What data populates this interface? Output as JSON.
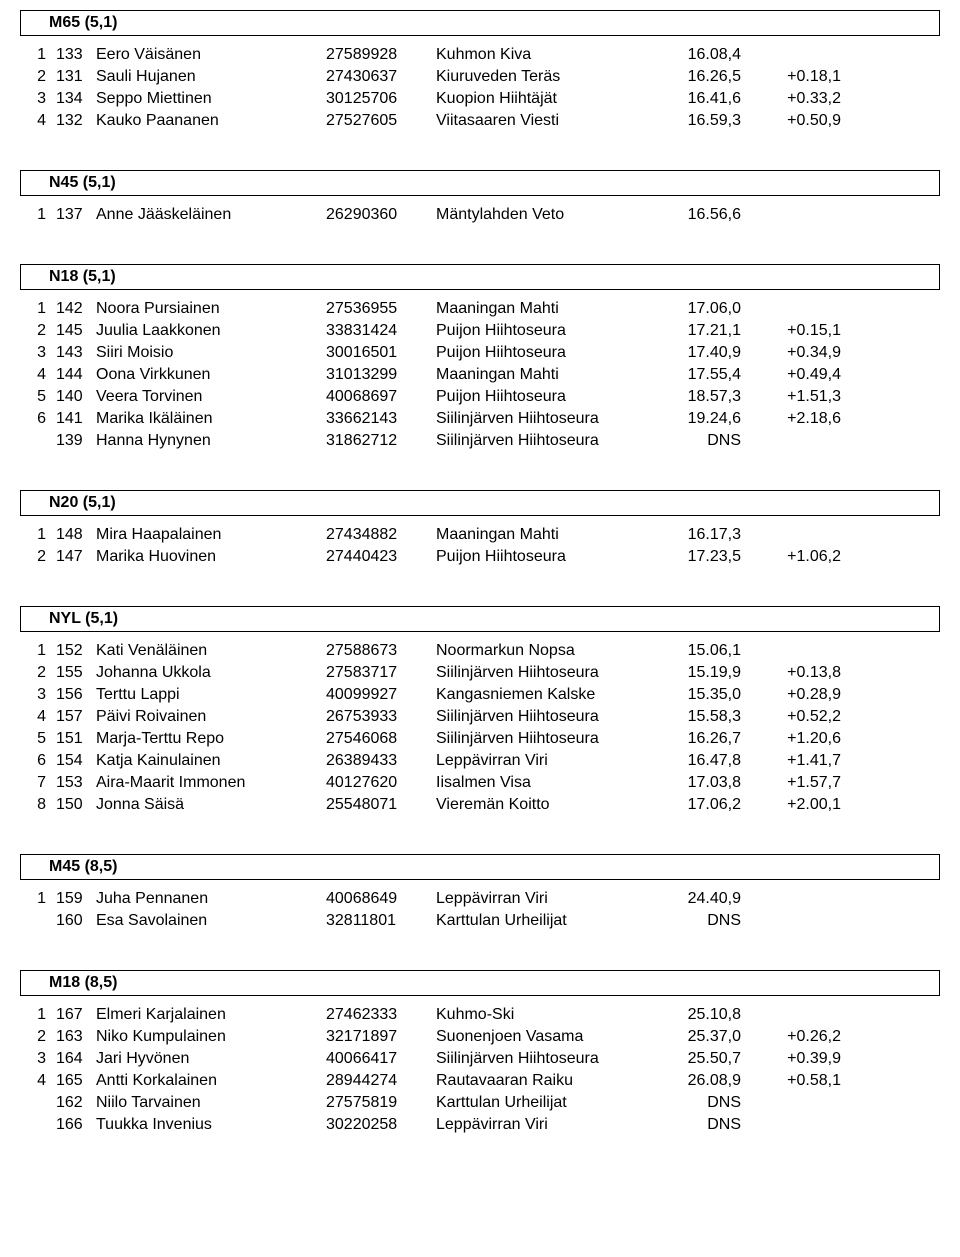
{
  "sections": [
    {
      "title": "M65 (5,1)",
      "rows": [
        {
          "place": "1",
          "bib": "133",
          "name": "Eero Väisänen",
          "lic": "27589928",
          "club": "Kuhmon Kiva",
          "time": "16.08,4",
          "diff": ""
        },
        {
          "place": "2",
          "bib": "131",
          "name": "Sauli Hujanen",
          "lic": "27430637",
          "club": "Kiuruveden Teräs",
          "time": "16.26,5",
          "diff": "+0.18,1"
        },
        {
          "place": "3",
          "bib": "134",
          "name": "Seppo Miettinen",
          "lic": "30125706",
          "club": "Kuopion Hiihtäjät",
          "time": "16.41,6",
          "diff": "+0.33,2"
        },
        {
          "place": "4",
          "bib": "132",
          "name": "Kauko Paananen",
          "lic": "27527605",
          "club": "Viitasaaren Viesti",
          "time": "16.59,3",
          "diff": "+0.50,9"
        }
      ]
    },
    {
      "title": "N45 (5,1)",
      "rows": [
        {
          "place": "1",
          "bib": "137",
          "name": "Anne Jääskeläinen",
          "lic": "26290360",
          "club": "Mäntylahden Veto",
          "time": "16.56,6",
          "diff": ""
        }
      ]
    },
    {
      "title": "N18 (5,1)",
      "rows": [
        {
          "place": "1",
          "bib": "142",
          "name": "Noora Pursiainen",
          "lic": "27536955",
          "club": "Maaningan Mahti",
          "time": "17.06,0",
          "diff": ""
        },
        {
          "place": "2",
          "bib": "145",
          "name": "Juulia Laakkonen",
          "lic": "33831424",
          "club": "Puijon Hiihtoseura",
          "time": "17.21,1",
          "diff": "+0.15,1"
        },
        {
          "place": "3",
          "bib": "143",
          "name": "Siiri Moisio",
          "lic": "30016501",
          "club": "Puijon Hiihtoseura",
          "time": "17.40,9",
          "diff": "+0.34,9"
        },
        {
          "place": "4",
          "bib": "144",
          "name": "Oona Virkkunen",
          "lic": "31013299",
          "club": "Maaningan Mahti",
          "time": "17.55,4",
          "diff": "+0.49,4"
        },
        {
          "place": "5",
          "bib": "140",
          "name": "Veera Torvinen",
          "lic": "40068697",
          "club": "Puijon Hiihtoseura",
          "time": "18.57,3",
          "diff": "+1.51,3"
        },
        {
          "place": "6",
          "bib": "141",
          "name": "Marika Ikäläinen",
          "lic": "33662143",
          "club": "Siilinjärven Hiihtoseura",
          "time": "19.24,6",
          "diff": "+2.18,6"
        },
        {
          "place": "",
          "bib": "139",
          "name": "Hanna Hynynen",
          "lic": "31862712",
          "club": "Siilinjärven Hiihtoseura",
          "time": "DNS",
          "diff": ""
        }
      ]
    },
    {
      "title": "N20 (5,1)",
      "rows": [
        {
          "place": "1",
          "bib": "148",
          "name": "Mira Haapalainen",
          "lic": "27434882",
          "club": "Maaningan Mahti",
          "time": "16.17,3",
          "diff": ""
        },
        {
          "place": "2",
          "bib": "147",
          "name": "Marika Huovinen",
          "lic": "27440423",
          "club": "Puijon Hiihtoseura",
          "time": "17.23,5",
          "diff": "+1.06,2"
        }
      ]
    },
    {
      "title": "NYL (5,1)",
      "rows": [
        {
          "place": "1",
          "bib": "152",
          "name": "Kati Venäläinen",
          "lic": "27588673",
          "club": "Noormarkun Nopsa",
          "time": "15.06,1",
          "diff": ""
        },
        {
          "place": "2",
          "bib": "155",
          "name": "Johanna Ukkola",
          "lic": "27583717",
          "club": "Siilinjärven Hiihtoseura",
          "time": "15.19,9",
          "diff": "+0.13,8"
        },
        {
          "place": "3",
          "bib": "156",
          "name": "Terttu Lappi",
          "lic": "40099927",
          "club": "Kangasniemen Kalske",
          "time": "15.35,0",
          "diff": "+0.28,9"
        },
        {
          "place": "4",
          "bib": "157",
          "name": "Päivi Roivainen",
          "lic": "26753933",
          "club": "Siilinjärven Hiihtoseura",
          "time": "15.58,3",
          "diff": "+0.52,2"
        },
        {
          "place": "5",
          "bib": "151",
          "name": "Marja-Terttu Repo",
          "lic": "27546068",
          "club": "Siilinjärven Hiihtoseura",
          "time": "16.26,7",
          "diff": "+1.20,6"
        },
        {
          "place": "6",
          "bib": "154",
          "name": "Katja Kainulainen",
          "lic": "26389433",
          "club": "Leppävirran Viri",
          "time": "16.47,8",
          "diff": "+1.41,7"
        },
        {
          "place": "7",
          "bib": "153",
          "name": "Aira-Maarit Immonen",
          "lic": "40127620",
          "club": "Iisalmen Visa",
          "time": "17.03,8",
          "diff": "+1.57,7"
        },
        {
          "place": "8",
          "bib": "150",
          "name": "Jonna Säisä",
          "lic": "25548071",
          "club": "Vieremän Koitto",
          "time": "17.06,2",
          "diff": "+2.00,1"
        }
      ]
    },
    {
      "title": "M45 (8,5)",
      "rows": [
        {
          "place": "1",
          "bib": "159",
          "name": "Juha Pennanen",
          "lic": "40068649",
          "club": "Leppävirran Viri",
          "time": "24.40,9",
          "diff": ""
        },
        {
          "place": "",
          "bib": "160",
          "name": "Esa Savolainen",
          "lic": "32811801",
          "club": "Karttulan Urheilijat",
          "time": "DNS",
          "diff": ""
        }
      ]
    },
    {
      "title": "M18 (8,5)",
      "rows": [
        {
          "place": "1",
          "bib": "167",
          "name": "Elmeri Karjalainen",
          "lic": "27462333",
          "club": "Kuhmo-Ski",
          "time": "25.10,8",
          "diff": ""
        },
        {
          "place": "2",
          "bib": "163",
          "name": "Niko Kumpulainen",
          "lic": "32171897",
          "club": "Suonenjoen Vasama",
          "time": "25.37,0",
          "diff": "+0.26,2"
        },
        {
          "place": "3",
          "bib": "164",
          "name": "Jari Hyvönen",
          "lic": "40066417",
          "club": "Siilinjärven Hiihtoseura",
          "time": "25.50,7",
          "diff": "+0.39,9"
        },
        {
          "place": "4",
          "bib": "165",
          "name": "Antti Korkalainen",
          "lic": "28944274",
          "club": "Rautavaaran Raiku",
          "time": "26.08,9",
          "diff": "+0.58,1"
        },
        {
          "place": "",
          "bib": "162",
          "name": "Niilo Tarvainen",
          "lic": "27575819",
          "club": "Karttulan Urheilijat",
          "time": "DNS",
          "diff": ""
        },
        {
          "place": "",
          "bib": "166",
          "name": "Tuukka Invenius",
          "lic": "30220258",
          "club": "Leppävirran Viri",
          "time": "DNS",
          "diff": ""
        }
      ]
    }
  ]
}
